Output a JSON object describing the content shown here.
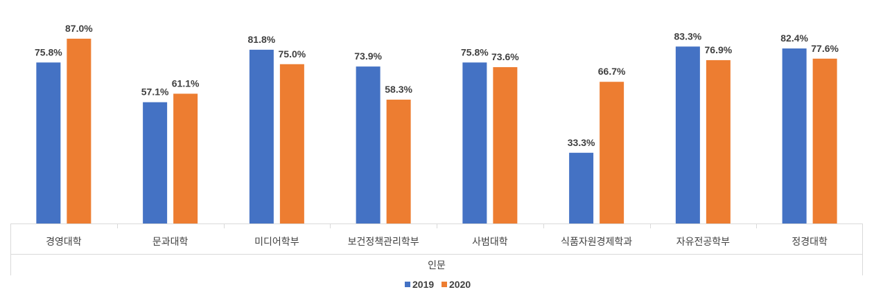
{
  "chart_data": {
    "type": "bar",
    "group_label": "인문",
    "categories": [
      "경영대학",
      "문과대학",
      "미디어학부",
      "보건정책관리학부",
      "사범대학",
      "식품자원경제학과",
      "자유전공학부",
      "정경대학"
    ],
    "series": [
      {
        "name": "2019",
        "color": "#4472C4",
        "values": [
          75.8,
          57.1,
          81.8,
          73.9,
          75.8,
          33.3,
          83.3,
          82.4
        ],
        "labels": [
          "75.8%",
          "57.1%",
          "81.8%",
          "73.9%",
          "75.8%",
          "33.3%",
          "83.3%",
          "82.4%"
        ]
      },
      {
        "name": "2020",
        "color": "#ED7D31",
        "values": [
          87.0,
          61.1,
          75.0,
          58.3,
          73.6,
          66.7,
          76.9,
          77.6
        ],
        "labels": [
          "87.0%",
          "61.1%",
          "75.0%",
          "58.3%",
          "73.6%",
          "66.7%",
          "76.9%",
          "77.6%"
        ]
      }
    ],
    "ylim": [
      0,
      100
    ],
    "grid": false,
    "legend_position": "bottom",
    "axis_color": "#D9D9D9"
  }
}
